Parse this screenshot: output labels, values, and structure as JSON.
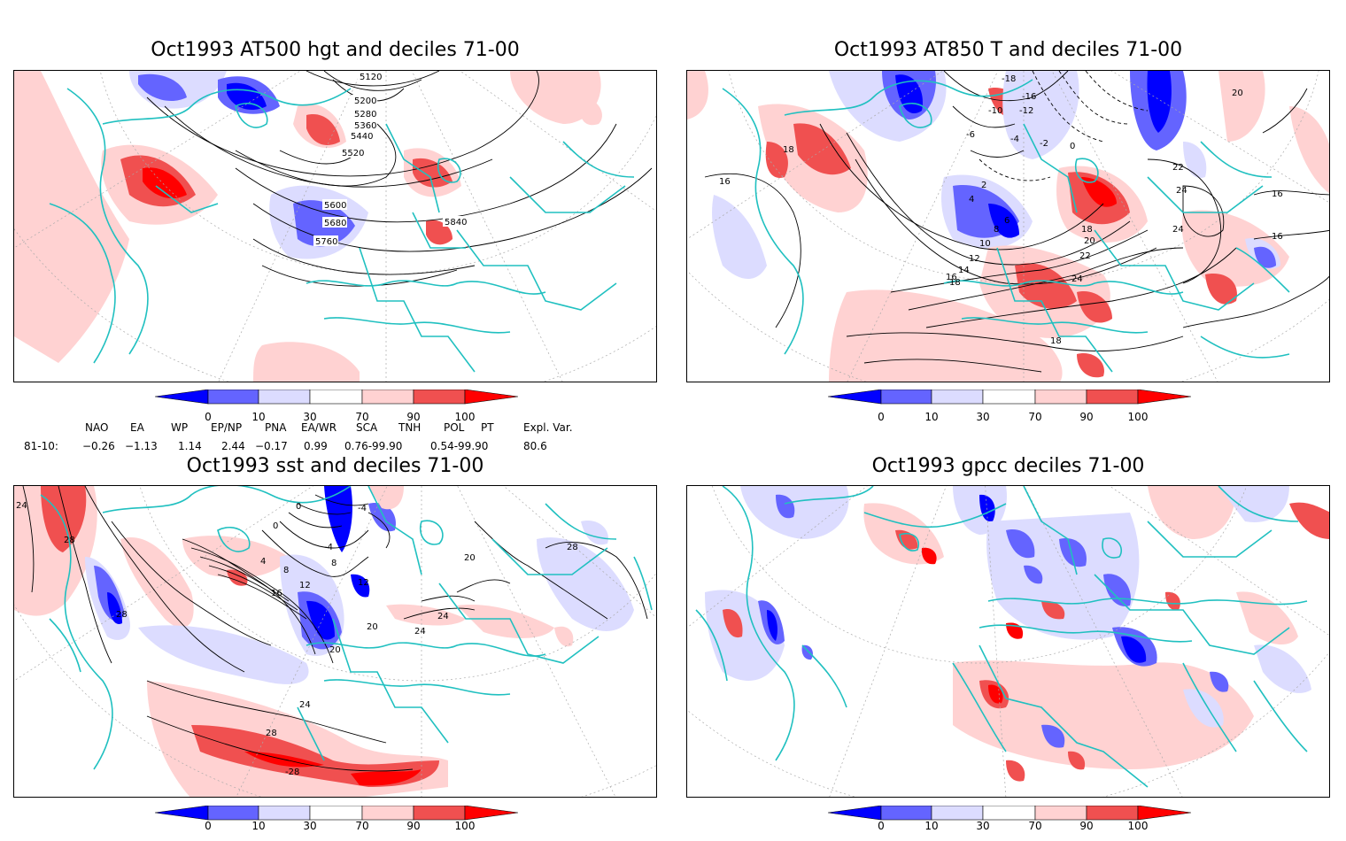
{
  "panels": [
    {
      "title": "Oct1993 AT500 hgt and deciles 71-00",
      "labels": [
        "5120",
        "5200",
        "5280",
        "5360",
        "5440",
        "5520",
        "5600",
        "5680",
        "5760",
        "5840"
      ]
    },
    {
      "title": "Oct1993 AT850 T and deciles 71-00",
      "labels": [
        "-18",
        "-16",
        "-12",
        "-10",
        "-6",
        "-4",
        "-2",
        "0",
        "2",
        "4",
        "6",
        "8",
        "10",
        "12",
        "14",
        "16",
        "16",
        "16",
        "16",
        "18",
        "18",
        "18",
        "18",
        "20",
        "20",
        "22",
        "22",
        "24",
        "24",
        "24"
      ]
    },
    {
      "title": "Oct1993 sst and deciles 71-00",
      "labels": [
        "24",
        "28",
        "28",
        "0",
        "-4",
        "0",
        "4",
        "8",
        "12",
        "12",
        "16",
        "20",
        "20",
        "24",
        "24",
        "24",
        "28",
        "28",
        "-28",
        "8",
        "-4",
        "20"
      ]
    },
    {
      "title": "Oct1993 gpcc deciles 71-00",
      "labels": []
    }
  ],
  "colorbar": {
    "ticks": [
      "0",
      "10",
      "30",
      "70",
      "90",
      "100"
    ],
    "colors": [
      "#0000ff",
      "#6464ff",
      "#dcdcff",
      "#ffffff",
      "#ffd2d2",
      "#f05050",
      "#ff0000"
    ]
  },
  "indices": {
    "headers": [
      "NAO",
      "EA",
      "WP",
      "EP/NP",
      "PNA",
      "EA/WR",
      "SCA",
      "TNH",
      "POL",
      "PT",
      "Expl. Var."
    ],
    "row_label": "81-10:",
    "values": [
      "−0.26",
      "−1.13",
      "1.14",
      "2.44",
      "−0.17",
      "0.99",
      "0.76-99.90",
      "0.54-99.90",
      "80.6"
    ]
  }
}
